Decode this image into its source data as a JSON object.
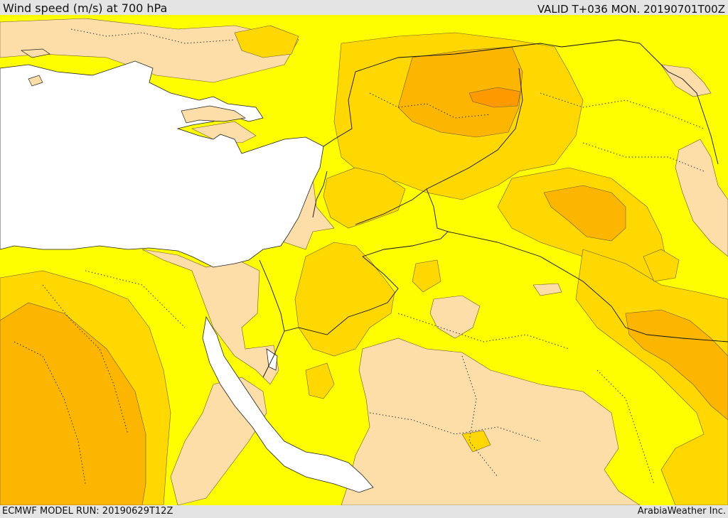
{
  "header": {
    "title": "Wind speed (m/s) at 700 hPa",
    "valid": "VALID T+036 MON. 20190701T00Z"
  },
  "footer": {
    "model_run": "ECMWF MODEL RUN: 20190629T12Z",
    "credit": "ArabiaWeather Inc."
  },
  "map": {
    "field": "wind-speed-700hPa",
    "colors": {
      "sea": "#ffffff",
      "very_low": "#fddea8",
      "low": "#fefe00",
      "medium": "#fed800",
      "high": "#fdb600",
      "very_high": "#fd9a00",
      "border": "#000000"
    }
  }
}
